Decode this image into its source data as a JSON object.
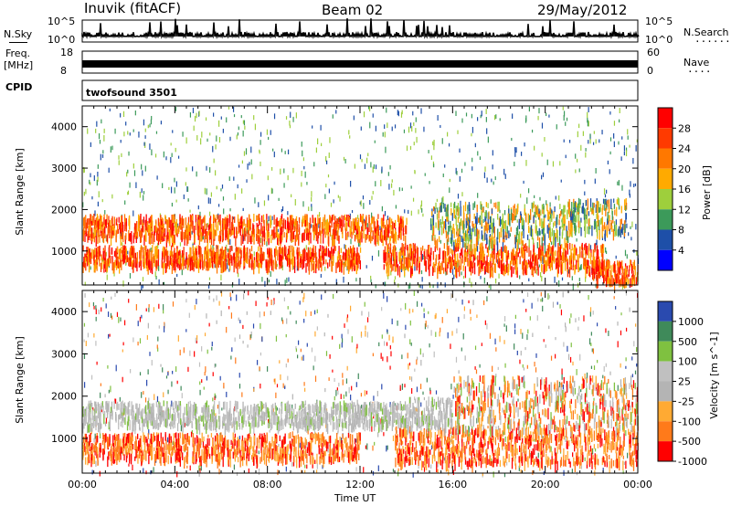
{
  "header": {
    "station": "Inuvik (fitACF)",
    "beam": "Beam 02",
    "date": "29/May/2012"
  },
  "nsky": {
    "label": "N.Sky",
    "tick_top": "10^5",
    "tick_bottom": "10^0",
    "right_label": "N.Search",
    "right_tick_top": "10^5",
    "right_tick_bottom": "10^0"
  },
  "freq": {
    "label_top": "Freq.",
    "label_unit": "[MHz]",
    "tick_top": "18",
    "tick_bottom": "8",
    "right_label": "Nave",
    "right_tick_top": "60",
    "right_tick_bottom": "0"
  },
  "cpid": {
    "label": "CPID",
    "value": "twofsound 3501"
  },
  "chart_data": [
    {
      "type": "heatmap",
      "name": "power",
      "ylabel": "Slant Range [km]",
      "ylim": [
        180,
        4500
      ],
      "yticks": [
        1000,
        2000,
        3000,
        4000
      ],
      "xlim_hours": [
        0,
        24
      ],
      "colorbar_label": "Power [dB]",
      "colorbar_ticks": [
        "28",
        "24",
        "20",
        "16",
        "12",
        "8",
        "4"
      ],
      "colorbar_colors": [
        "#ff0000",
        "#ff3a00",
        "#ff7800",
        "#ffaa00",
        "#9ecf3c",
        "#3c9a5a",
        "#1e4fa8",
        "#0000ff"
      ],
      "bands": [
        {
          "t0": 0.0,
          "t1": 14.0,
          "r0": 1350,
          "r1": 1900,
          "level": "high"
        },
        {
          "t0": 0.0,
          "t1": 12.0,
          "r0": 700,
          "r1": 1150,
          "level": "high"
        },
        {
          "t0": 13.0,
          "t1": 22.5,
          "r0": 600,
          "r1": 1200,
          "level": "high"
        },
        {
          "t0": 15.0,
          "t1": 21.0,
          "r0": 1200,
          "r1": 2200,
          "level": "medium"
        },
        {
          "t0": 21.0,
          "t1": 23.5,
          "r0": 1500,
          "r1": 2300,
          "level": "medium"
        },
        {
          "t0": 22.0,
          "t1": 24.0,
          "r0": 300,
          "r1": 800,
          "level": "high"
        }
      ]
    },
    {
      "type": "heatmap",
      "name": "velocity",
      "ylabel": "Slant Range [km]",
      "xlabel": "Time UT",
      "ylim": [
        180,
        4500
      ],
      "yticks": [
        1000,
        2000,
        3000,
        4000
      ],
      "xlim_hours": [
        0,
        24
      ],
      "xticks": [
        "00:00",
        "04:00",
        "08:00",
        "12:00",
        "16:00",
        "20:00",
        "00:00"
      ],
      "colorbar_label": "Velocity [m s^-1]",
      "colorbar_ticks": [
        "1000",
        "500",
        "100",
        "25",
        "-25",
        "-100",
        "-500",
        "-1000"
      ],
      "colorbar_colors": [
        "#2a4aaf",
        "#3f8a5a",
        "#7fc140",
        "#c0c0c0",
        "#b4b4b4",
        "#ffaa33",
        "#ff7a1a",
        "#ff0000"
      ],
      "bands": [
        {
          "t0": 0.0,
          "t1": 14.0,
          "r0": 1350,
          "r1": 1900,
          "level": "ground"
        },
        {
          "t0": 0.0,
          "t1": 12.0,
          "r0": 550,
          "r1": 1150,
          "level": "negative"
        },
        {
          "t0": 13.5,
          "t1": 24.0,
          "r0": 450,
          "r1": 1300,
          "level": "negative"
        },
        {
          "t0": 14.0,
          "t1": 16.0,
          "r0": 1300,
          "r1": 2000,
          "level": "ground"
        },
        {
          "t0": 16.0,
          "t1": 24.0,
          "r0": 1300,
          "r1": 2500,
          "level": "mixed"
        }
      ]
    }
  ]
}
